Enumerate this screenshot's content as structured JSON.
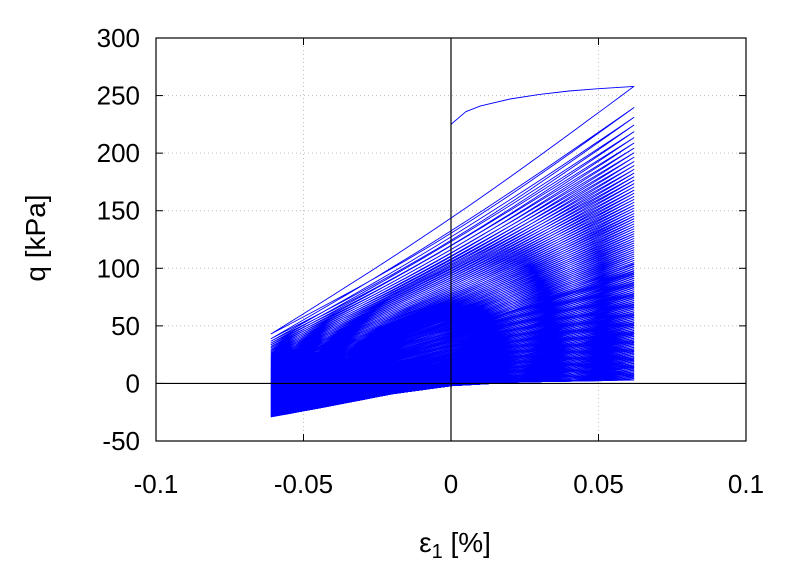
{
  "chart_data": {
    "type": "line",
    "title": "",
    "xlabel": "ε1 [%]",
    "xlabel_main": "ε",
    "xlabel_sub": "1",
    "xlabel_unit": " [%]",
    "ylabel": "q [kPa]",
    "xlim": [
      -0.1,
      0.1
    ],
    "ylim": [
      -50,
      300
    ],
    "xticks": [
      -0.1,
      -0.05,
      0,
      0.05,
      0.1
    ],
    "xtick_labels": [
      "-0.1",
      "-0.05",
      "0",
      "0.05",
      "0.1"
    ],
    "yticks": [
      -50,
      0,
      50,
      100,
      150,
      200,
      250,
      300
    ],
    "ytick_labels": [
      "-50",
      "0",
      "50",
      "100",
      "150",
      "200",
      "250",
      "300"
    ],
    "grid": true,
    "zero_lines": true,
    "line_color": "#0000ff",
    "loops": {
      "count": 120,
      "strain_amplitude": 0.062,
      "strain_min": -0.061,
      "first_loading": {
        "x": [
          0,
          0.005,
          0.01,
          0.02,
          0.03,
          0.04,
          0.05,
          0.062
        ],
        "y": [
          225,
          236,
          241,
          247,
          251,
          254,
          256,
          258
        ]
      },
      "first_cycle": {
        "top_y": 258,
        "bottom_y": 43
      },
      "last_cycle": {
        "top_y": 3,
        "bottom_y": -29
      },
      "lower_envelope": {
        "x": [
          -0.061,
          -0.04,
          -0.02,
          0,
          0.02,
          0.04,
          0.062
        ],
        "y": [
          -29,
          -19,
          -9,
          -2,
          1,
          2,
          3
        ]
      }
    }
  }
}
